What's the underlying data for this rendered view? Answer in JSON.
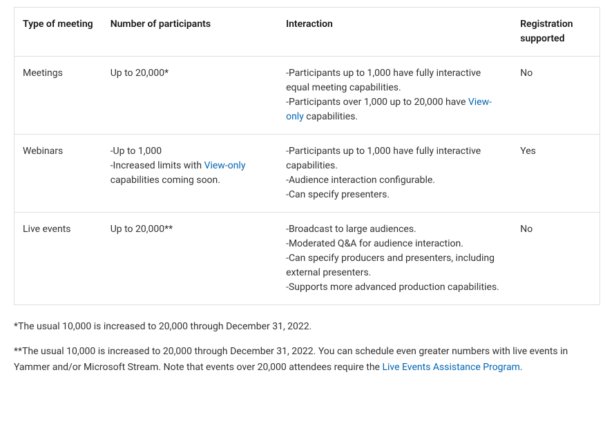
{
  "table": {
    "headers": {
      "type": "Type of meeting",
      "participants": "Number of participants",
      "interaction": "Interaction",
      "registration": "Registration supported"
    },
    "rows": {
      "meetings": {
        "type": "Meetings",
        "participants": "Up to 20,000*",
        "interaction_line1": "-Participants up to 1,000 have fully interactive equal meeting capabilities.",
        "interaction_line2_prefix": "-Participants over 1,000 up to 20,000 have ",
        "interaction_line2_link": "View-only",
        "interaction_line2_suffix": " capabilities.",
        "registration": "No"
      },
      "webinars": {
        "type": "Webinars",
        "participants_line1": "-Up to 1,000",
        "participants_line2_prefix": "-Increased limits with ",
        "participants_line2_link": "View-only",
        "participants_line2_suffix": " capabilities coming soon.",
        "interaction_line1": "-Participants up to 1,000 have fully interactive capabilities.",
        "interaction_line2": "-Audience interaction configurable.",
        "interaction_line3": "-Can specify presenters.",
        "registration": "Yes"
      },
      "liveevents": {
        "type": "Live events",
        "participants": "Up to 20,000**",
        "interaction_line1": "-Broadcast to large audiences.",
        "interaction_line2": "-Moderated Q&A for audience interaction.",
        "interaction_line3": "-Can specify producers and presenters, including external presenters.",
        "interaction_line4": "-Supports more advanced production capabilities.",
        "registration": "No"
      }
    }
  },
  "footnotes": {
    "note1": "*The usual 10,000 is increased to 20,000 through December 31, 2022.",
    "note2_prefix": "**The usual 10,000 is increased to 20,000 through December 31, 2022. You can schedule even greater numbers with live events in Yammer and/or Microsoft Stream. Note that events over 20,000 attendees require the ",
    "note2_link": "Live Events Assistance Program",
    "note2_suffix": "."
  },
  "links": {
    "viewonly_href": "#",
    "assistance_href": "#"
  }
}
